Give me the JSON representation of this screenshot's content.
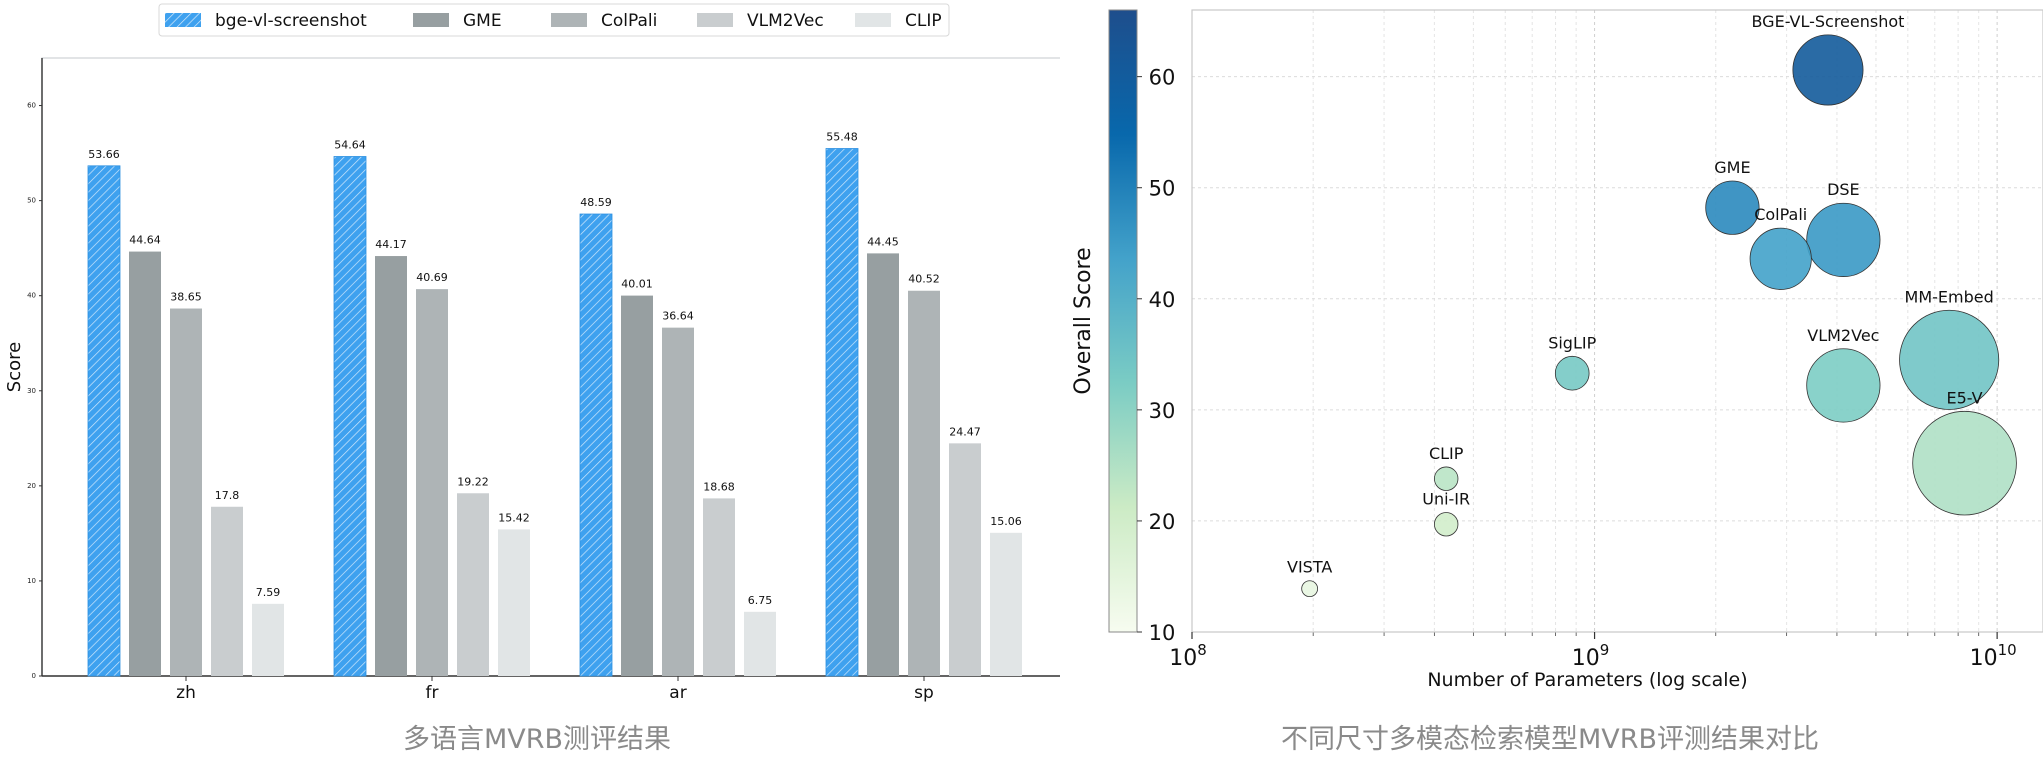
{
  "chart_data": [
    {
      "type": "bar",
      "title": "多语言MVRB测评结果",
      "xlabel": "",
      "ylabel": "Score",
      "ylim": [
        0,
        65
      ],
      "yticks": [
        0,
        10,
        20,
        30,
        40,
        50,
        60
      ],
      "categories": [
        "zh",
        "fr",
        "ar",
        "sp"
      ],
      "legend_position": "top",
      "series": [
        {
          "name": "bge-vl-screenshot",
          "color": "#3ea1ef",
          "hatch": true,
          "values": [
            53.66,
            54.64,
            48.59,
            55.48
          ],
          "labels": [
            "53.66",
            "54.64",
            "48.59",
            "55.48"
          ]
        },
        {
          "name": "GME",
          "color": "#979fa1",
          "values": [
            44.64,
            44.17,
            40.01,
            44.45
          ],
          "labels": [
            "44.64",
            "44.17",
            "40.01",
            "44.45"
          ]
        },
        {
          "name": "ColPali",
          "color": "#aeb4b6",
          "values": [
            38.65,
            40.69,
            36.64,
            40.52
          ],
          "labels": [
            "38.65",
            "40.69",
            "36.64",
            "40.52"
          ]
        },
        {
          "name": "VLM2Vec",
          "color": "#c9cdcf",
          "values": [
            17.8,
            19.22,
            18.68,
            24.47
          ],
          "labels": [
            "17.8",
            "19.22",
            "18.68",
            "24.47"
          ]
        },
        {
          "name": "CLIP",
          "color": "#e1e5e6",
          "values": [
            7.59,
            15.42,
            6.75,
            15.06
          ],
          "labels": [
            "7.59",
            "15.42",
            "6.75",
            "15.06"
          ]
        }
      ]
    },
    {
      "type": "scatter",
      "title": "不同尺寸多模态检索模型MVRB评测结果对比",
      "xlabel": "Number of Parameters (log scale)",
      "ylabel": "Overall Score",
      "xscale": "log",
      "xlim": [
        100000000,
        13000000000
      ],
      "ylim": [
        10,
        66
      ],
      "yticks": [
        10,
        20,
        30,
        40,
        50,
        60
      ],
      "xticks": [
        {
          "value": 100000000,
          "base": "10",
          "exp": "8"
        },
        {
          "value": 1000000000,
          "base": "10",
          "exp": "9"
        },
        {
          "value": 10000000000,
          "base": "10",
          "exp": "10"
        }
      ],
      "grid": true,
      "colorbar": {
        "min": 10,
        "max": 66,
        "colors": [
          "#f7fcf0",
          "#ccebc5",
          "#7bccc4",
          "#43a2ca",
          "#0868ac",
          "#1e4e8c"
        ]
      },
      "points": [
        {
          "name": "BGE-VL-Screenshot",
          "x": 3800000000,
          "y": 60.6,
          "size": 38000000000
        },
        {
          "name": "GME",
          "x": 2200000000,
          "y": 48.2,
          "size": 22000000000
        },
        {
          "name": "ColPali",
          "x": 2900000000,
          "y": 43.6,
          "size": 29000000000
        },
        {
          "name": "DSE",
          "x": 4150000000,
          "y": 45.3,
          "size": 41500000000
        },
        {
          "name": "MM-Embed",
          "x": 7600000000,
          "y": 34.5,
          "size": 76000000000
        },
        {
          "name": "VLM2Vec",
          "x": 4150000000,
          "y": 32.2,
          "size": 41500000000
        },
        {
          "name": "E5-V",
          "x": 8300000000,
          "y": 25.2,
          "size": 83000000000
        },
        {
          "name": "SigLIP",
          "x": 880000000,
          "y": 33.3,
          "size": 8800000000
        },
        {
          "name": "CLIP",
          "x": 428000000,
          "y": 23.8,
          "size": 4280000000
        },
        {
          "name": "Uni-IR",
          "x": 428000000,
          "y": 19.7,
          "size": 4280000000
        },
        {
          "name": "VISTA",
          "x": 196000000,
          "y": 13.9,
          "size": 1960000000
        }
      ]
    }
  ]
}
